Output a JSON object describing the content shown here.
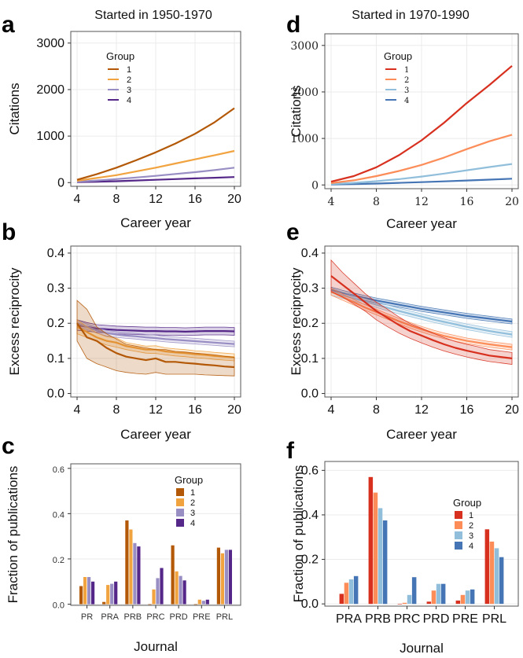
{
  "column_titles": {
    "left": "Started in 1950-1970",
    "right": "Started in 1970-1990"
  },
  "colors": {
    "left": [
      "#b35806",
      "#f1a340",
      "#998ec3",
      "#542788"
    ],
    "right": [
      "#d7301f",
      "#fc8d59",
      "#91bfdb",
      "#4575b4"
    ]
  },
  "chart_data": [
    {
      "panel": "a",
      "type": "line",
      "xlabel": "Career year",
      "ylabel": "Citations",
      "xlim": [
        4,
        20
      ],
      "ylim": [
        -80,
        3250
      ],
      "xticks": [
        4,
        8,
        12,
        16,
        20
      ],
      "yticks": [
        0,
        1000,
        2000,
        3000
      ],
      "tick_labels_x": [
        "4",
        "8",
        "12",
        "16",
        "20"
      ],
      "tick_labels_y": [
        "0",
        "1000",
        "2000",
        "3000"
      ],
      "legend": {
        "title": "Group",
        "placement": "top-left"
      },
      "x": [
        4,
        6,
        8,
        10,
        12,
        14,
        16,
        18,
        20
      ],
      "series": [
        {
          "name": "1",
          "values": [
            60,
            180,
            320,
            480,
            650,
            840,
            1050,
            1300,
            1600
          ]
        },
        {
          "name": "2",
          "values": [
            40,
            100,
            160,
            240,
            320,
            410,
            500,
            590,
            680
          ]
        },
        {
          "name": "3",
          "values": [
            20,
            45,
            75,
            110,
            145,
            185,
            225,
            270,
            320
          ]
        },
        {
          "name": "4",
          "values": [
            10,
            20,
            30,
            45,
            60,
            75,
            90,
            105,
            120
          ]
        }
      ]
    },
    {
      "panel": "b",
      "type": "line",
      "xlabel": "Career year",
      "ylabel": "Excess reciprocity",
      "xlim": [
        4,
        20
      ],
      "ylim": [
        -0.01,
        0.42
      ],
      "xticks": [
        4,
        8,
        12,
        16,
        20
      ],
      "yticks": [
        0,
        0.1,
        0.2,
        0.3,
        0.4
      ],
      "tick_labels_x": [
        "4",
        "8",
        "12",
        "16",
        "20"
      ],
      "tick_labels_y": [
        "0.0",
        "0.1",
        "0.2",
        "0.3",
        "0.4"
      ],
      "x": [
        4,
        5,
        6,
        7,
        8,
        9,
        10,
        11,
        12,
        13,
        14,
        15,
        16,
        17,
        18,
        19,
        20
      ],
      "series": [
        {
          "name": "1",
          "values": [
            0.2,
            0.16,
            0.15,
            0.13,
            0.115,
            0.105,
            0.1,
            0.095,
            0.1,
            0.09,
            0.09,
            0.087,
            0.085,
            0.082,
            0.08,
            0.077,
            0.075
          ],
          "lower": [
            0.15,
            0.1,
            0.085,
            0.075,
            0.065,
            0.06,
            0.057,
            0.055,
            0.06,
            0.055,
            0.055,
            0.055,
            0.055,
            0.053,
            0.052,
            0.051,
            0.05
          ],
          "upper": [
            0.265,
            0.24,
            0.19,
            0.17,
            0.155,
            0.14,
            0.135,
            0.13,
            0.125,
            0.125,
            0.12,
            0.118,
            0.115,
            0.113,
            0.11,
            0.106,
            0.103
          ]
        },
        {
          "name": "2",
          "values": [
            0.19,
            0.175,
            0.16,
            0.15,
            0.145,
            0.135,
            0.13,
            0.125,
            0.125,
            0.12,
            0.117,
            0.115,
            0.112,
            0.11,
            0.107,
            0.105,
            0.103
          ],
          "lower": [
            0.17,
            0.16,
            0.148,
            0.138,
            0.132,
            0.125,
            0.12,
            0.115,
            0.114,
            0.11,
            0.107,
            0.105,
            0.102,
            0.1,
            0.097,
            0.095,
            0.093
          ],
          "upper": [
            0.21,
            0.19,
            0.172,
            0.162,
            0.158,
            0.145,
            0.14,
            0.135,
            0.136,
            0.13,
            0.127,
            0.125,
            0.122,
            0.12,
            0.117,
            0.115,
            0.113
          ]
        },
        {
          "name": "3",
          "values": [
            0.2,
            0.19,
            0.18,
            0.172,
            0.168,
            0.165,
            0.163,
            0.16,
            0.158,
            0.155,
            0.153,
            0.151,
            0.149,
            0.147,
            0.145,
            0.143,
            0.141
          ],
          "lower": [
            0.19,
            0.182,
            0.172,
            0.164,
            0.16,
            0.157,
            0.155,
            0.152,
            0.15,
            0.147,
            0.145,
            0.143,
            0.141,
            0.139,
            0.137,
            0.135,
            0.133
          ],
          "upper": [
            0.21,
            0.198,
            0.188,
            0.18,
            0.176,
            0.173,
            0.171,
            0.168,
            0.166,
            0.163,
            0.161,
            0.159,
            0.157,
            0.155,
            0.153,
            0.151,
            0.149
          ]
        },
        {
          "name": "4",
          "values": [
            0.195,
            0.19,
            0.185,
            0.183,
            0.181,
            0.18,
            0.179,
            0.178,
            0.178,
            0.177,
            0.177,
            0.176,
            0.177,
            0.178,
            0.178,
            0.178,
            0.177
          ],
          "lower": [
            0.18,
            0.178,
            0.174,
            0.172,
            0.17,
            0.169,
            0.168,
            0.167,
            0.167,
            0.166,
            0.166,
            0.165,
            0.166,
            0.167,
            0.167,
            0.167,
            0.166
          ],
          "upper": [
            0.21,
            0.202,
            0.196,
            0.194,
            0.192,
            0.191,
            0.19,
            0.189,
            0.189,
            0.188,
            0.188,
            0.187,
            0.188,
            0.189,
            0.189,
            0.189,
            0.188
          ]
        }
      ]
    },
    {
      "panel": "c",
      "type": "bar",
      "xlabel": "Journal",
      "ylabel": "Fraction of publications",
      "ylim": [
        -0.005,
        0.62
      ],
      "yticks": [
        0,
        0.2,
        0.4,
        0.6
      ],
      "tick_labels_y": [
        "0.0",
        "0.2",
        "0.4",
        "0.6"
      ],
      "legend": {
        "title": "Group",
        "placement": "top-right"
      },
      "categories": [
        "PR",
        "PRA",
        "PRB",
        "PRC",
        "PRD",
        "PRE",
        "PRL"
      ],
      "series": [
        {
          "name": "1",
          "values": [
            0.08,
            0.01,
            0.37,
            0.0,
            0.26,
            0.0,
            0.25
          ]
        },
        {
          "name": "2",
          "values": [
            0.12,
            0.085,
            0.33,
            0.065,
            0.145,
            0.02,
            0.225
          ]
        },
        {
          "name": "3",
          "values": [
            0.12,
            0.09,
            0.27,
            0.115,
            0.125,
            0.015,
            0.24
          ]
        },
        {
          "name": "4",
          "values": [
            0.1,
            0.1,
            0.255,
            0.16,
            0.105,
            0.02,
            0.24
          ]
        }
      ]
    },
    {
      "panel": "d",
      "type": "line",
      "xlabel": "Career year",
      "ylabel": "Citations",
      "xlim": [
        4,
        20
      ],
      "ylim": [
        -80,
        3250
      ],
      "xticks": [
        4,
        8,
        12,
        16,
        20
      ],
      "yticks": [
        0,
        1000,
        2000,
        3000
      ],
      "tick_labels_x": [
        "4",
        "8",
        "12",
        "16",
        "20"
      ],
      "tick_labels_y": [
        "0",
        "1000",
        "2000",
        "3000"
      ],
      "legend": {
        "title": "Group",
        "placement": "top-left"
      },
      "x": [
        4,
        6,
        8,
        10,
        12,
        14,
        16,
        18,
        20
      ],
      "series": [
        {
          "name": "1",
          "values": [
            70,
            190,
            380,
            640,
            960,
            1340,
            1760,
            2150,
            2560
          ]
        },
        {
          "name": "2",
          "values": [
            40,
            100,
            190,
            300,
            430,
            590,
            770,
            940,
            1080
          ]
        },
        {
          "name": "3",
          "values": [
            20,
            45,
            80,
            125,
            180,
            245,
            315,
            385,
            450
          ]
        },
        {
          "name": "4",
          "values": [
            10,
            20,
            30,
            45,
            60,
            78,
            96,
            115,
            135
          ]
        }
      ]
    },
    {
      "panel": "e",
      "type": "line",
      "xlabel": "Career year",
      "ylabel": "Excess reciprocity",
      "xlim": [
        4,
        20
      ],
      "ylim": [
        -0.01,
        0.42
      ],
      "xticks": [
        4,
        8,
        12,
        16,
        20
      ],
      "yticks": [
        0,
        0.1,
        0.2,
        0.3,
        0.4
      ],
      "tick_labels_x": [
        "4",
        "8",
        "12",
        "16",
        "20"
      ],
      "tick_labels_y": [
        "0.0",
        "0.1",
        "0.2",
        "0.3",
        "0.4"
      ],
      "x": [
        4,
        5,
        6,
        7,
        8,
        9,
        10,
        11,
        12,
        13,
        14,
        15,
        16,
        17,
        18,
        19,
        20
      ],
      "series": [
        {
          "name": "1",
          "values": [
            0.335,
            0.31,
            0.285,
            0.26,
            0.235,
            0.215,
            0.195,
            0.178,
            0.165,
            0.152,
            0.14,
            0.13,
            0.122,
            0.115,
            0.108,
            0.104,
            0.1
          ],
          "lower": [
            0.29,
            0.275,
            0.255,
            0.235,
            0.21,
            0.19,
            0.172,
            0.157,
            0.144,
            0.132,
            0.121,
            0.112,
            0.104,
            0.097,
            0.091,
            0.087,
            0.083
          ],
          "upper": [
            0.38,
            0.345,
            0.315,
            0.285,
            0.26,
            0.24,
            0.218,
            0.199,
            0.186,
            0.172,
            0.159,
            0.148,
            0.14,
            0.133,
            0.125,
            0.121,
            0.117
          ]
        },
        {
          "name": "2",
          "values": [
            0.29,
            0.275,
            0.26,
            0.245,
            0.232,
            0.219,
            0.206,
            0.194,
            0.183,
            0.173,
            0.164,
            0.157,
            0.15,
            0.145,
            0.14,
            0.136,
            0.132
          ],
          "lower": [
            0.28,
            0.266,
            0.252,
            0.237,
            0.224,
            0.211,
            0.198,
            0.186,
            0.175,
            0.165,
            0.156,
            0.149,
            0.142,
            0.137,
            0.132,
            0.128,
            0.124
          ],
          "upper": [
            0.3,
            0.284,
            0.268,
            0.253,
            0.24,
            0.227,
            0.214,
            0.202,
            0.191,
            0.181,
            0.172,
            0.165,
            0.158,
            0.153,
            0.148,
            0.144,
            0.14
          ]
        },
        {
          "name": "3",
          "values": [
            0.29,
            0.28,
            0.271,
            0.262,
            0.253,
            0.244,
            0.235,
            0.227,
            0.219,
            0.211,
            0.204,
            0.197,
            0.19,
            0.184,
            0.178,
            0.173,
            0.168
          ],
          "lower": [
            0.28,
            0.271,
            0.263,
            0.254,
            0.245,
            0.236,
            0.227,
            0.219,
            0.211,
            0.203,
            0.196,
            0.189,
            0.182,
            0.176,
            0.17,
            0.165,
            0.16
          ],
          "upper": [
            0.3,
            0.289,
            0.279,
            0.27,
            0.261,
            0.252,
            0.243,
            0.235,
            0.227,
            0.219,
            0.212,
            0.205,
            0.198,
            0.192,
            0.186,
            0.181,
            0.176
          ]
        },
        {
          "name": "4",
          "values": [
            0.295,
            0.287,
            0.279,
            0.272,
            0.265,
            0.259,
            0.253,
            0.247,
            0.241,
            0.236,
            0.231,
            0.226,
            0.221,
            0.217,
            0.213,
            0.209,
            0.205
          ],
          "lower": [
            0.287,
            0.28,
            0.272,
            0.265,
            0.258,
            0.252,
            0.246,
            0.24,
            0.234,
            0.229,
            0.224,
            0.219,
            0.214,
            0.21,
            0.206,
            0.202,
            0.198
          ],
          "upper": [
            0.303,
            0.294,
            0.286,
            0.279,
            0.272,
            0.266,
            0.26,
            0.254,
            0.248,
            0.243,
            0.238,
            0.233,
            0.228,
            0.224,
            0.22,
            0.216,
            0.212
          ]
        }
      ]
    },
    {
      "panel": "f",
      "type": "bar",
      "xlabel": "Journal",
      "ylabel": "Fraction of publications",
      "ylim": [
        -0.01,
        0.64
      ],
      "yticks": [
        0,
        0.2,
        0.4,
        0.6
      ],
      "tick_labels_y": [
        "0.0",
        "0.2",
        "0.4",
        "0.6"
      ],
      "legend": {
        "title": "Group",
        "placement": "middle-right"
      },
      "categories": [
        "PRA",
        "PRB",
        "PRC",
        "PRD",
        "PRE",
        "PRL"
      ],
      "series": [
        {
          "name": "1",
          "values": [
            0.045,
            0.57,
            0.0,
            0.01,
            0.015,
            0.335
          ]
        },
        {
          "name": "2",
          "values": [
            0.095,
            0.5,
            0.005,
            0.06,
            0.04,
            0.28
          ]
        },
        {
          "name": "3",
          "values": [
            0.11,
            0.43,
            0.04,
            0.09,
            0.06,
            0.25
          ]
        },
        {
          "name": "4",
          "values": [
            0.125,
            0.375,
            0.12,
            0.09,
            0.065,
            0.21
          ]
        }
      ]
    }
  ]
}
